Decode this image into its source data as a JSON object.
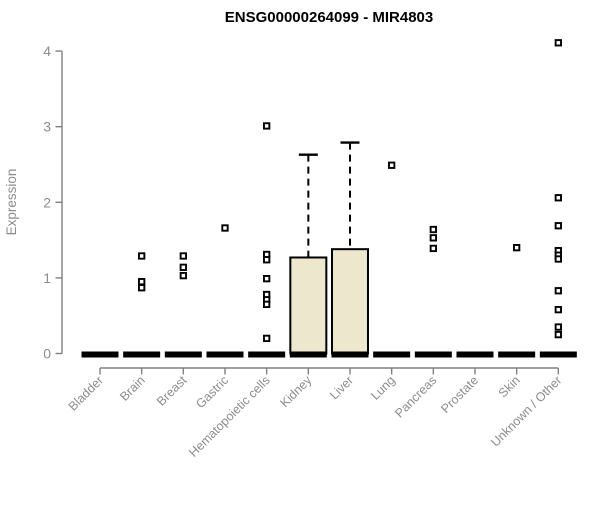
{
  "chart_data": {
    "type": "boxplot",
    "title": "ENSG00000264099 - MIR4803",
    "ylabel": "Expression",
    "xlabel": "",
    "ylim": [
      0,
      4
    ],
    "yticks": [
      0,
      1,
      2,
      3,
      4
    ],
    "grid": false,
    "legend": false,
    "categories": [
      "Bladder",
      "Brain",
      "Breast",
      "Gastric",
      "Hematopoietic cells",
      "Kidney",
      "Liver",
      "Lung",
      "Pancreas",
      "Prostate",
      "Skin",
      "Unknown / Other"
    ],
    "boxes": [
      {
        "category": "Bladder",
        "median": 0,
        "q1": 0,
        "q3": 0,
        "whisker_low": 0,
        "whisker_high": 0,
        "outliers": []
      },
      {
        "category": "Brain",
        "median": 0,
        "q1": 0,
        "q3": 0,
        "whisker_low": 0,
        "whisker_high": 0,
        "outliers": [
          1.29,
          0.95,
          0.87
        ]
      },
      {
        "category": "Breast",
        "median": 0,
        "q1": 0,
        "q3": 0,
        "whisker_low": 0,
        "whisker_high": 0,
        "outliers": [
          1.29,
          1.14,
          1.03
        ]
      },
      {
        "category": "Gastric",
        "median": 0,
        "q1": 0,
        "q3": 0,
        "whisker_low": 0,
        "whisker_high": 0,
        "outliers": [
          1.66
        ]
      },
      {
        "category": "Hematopoietic cells",
        "median": 0,
        "q1": 0,
        "q3": 0,
        "whisker_low": 0,
        "whisker_high": 0,
        "outliers": [
          3.01,
          1.31,
          1.24,
          0.99,
          0.78,
          0.71,
          0.65,
          0.2
        ]
      },
      {
        "category": "Kidney",
        "median": 0,
        "q1": 0,
        "q3": 1.27,
        "whisker_low": 0,
        "whisker_high": 2.63,
        "outliers": []
      },
      {
        "category": "Liver",
        "median": 0,
        "q1": 0,
        "q3": 1.38,
        "whisker_low": 0,
        "whisker_high": 2.79,
        "outliers": []
      },
      {
        "category": "Lung",
        "median": 0,
        "q1": 0,
        "q3": 0,
        "whisker_low": 0,
        "whisker_high": 0,
        "outliers": [
          2.49
        ]
      },
      {
        "category": "Pancreas",
        "median": 0,
        "q1": 0,
        "q3": 0,
        "whisker_low": 0,
        "whisker_high": 0,
        "outliers": [
          1.64,
          1.53,
          1.39
        ]
      },
      {
        "category": "Prostate",
        "median": 0,
        "q1": 0,
        "q3": 0,
        "whisker_low": 0,
        "whisker_high": 0,
        "outliers": []
      },
      {
        "category": "Skin",
        "median": 0,
        "q1": 0,
        "q3": 0,
        "whisker_low": 0,
        "whisker_high": 0,
        "outliers": [
          1.4
        ]
      },
      {
        "category": "Unknown / Other",
        "median": 0,
        "q1": 0,
        "q3": 0,
        "whisker_low": 0,
        "whisker_high": 0,
        "outliers": [
          4.11,
          2.06,
          1.69,
          1.36,
          1.3,
          1.25,
          0.83,
          0.58,
          0.35,
          0.25
        ]
      }
    ],
    "colors": {
      "box_fill": "#ECE7CD",
      "box_border": "#000000",
      "median": "#000000",
      "whisker": "#000000",
      "outlier_stroke": "#000000",
      "outlier_fill": "#FFFFFF",
      "axis_line": "#808080",
      "tick_text": "#8C8C8C",
      "title_text": "#000000",
      "background": "#FFFFFF"
    }
  }
}
